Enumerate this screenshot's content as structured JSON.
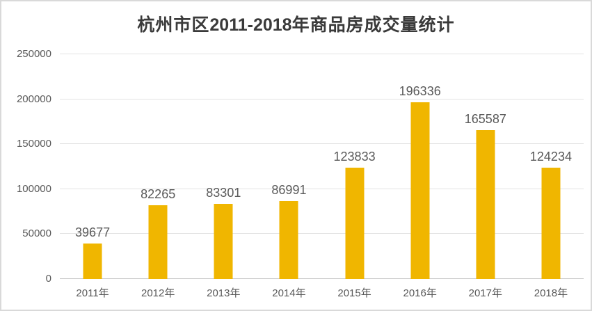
{
  "title": {
    "prefix": "杭州市区",
    "range": "2011-2018",
    "suffix": "年商品房成交量统计",
    "full": "杭州市区2011-2018年商品房成交量统计"
  },
  "chart_data": {
    "type": "bar",
    "title": "杭州市区2011-2018年商品房成交量统计",
    "categories": [
      "2011年",
      "2012年",
      "2013年",
      "2014年",
      "2015年",
      "2016年",
      "2017年",
      "2018年"
    ],
    "values": [
      39677,
      82265,
      83301,
      86991,
      123833,
      196336,
      165587,
      124234
    ],
    "data_labels": [
      "39677",
      "82265",
      "83301",
      "86991",
      "123833",
      "196336",
      "165587",
      "124234"
    ],
    "xlabel": "",
    "ylabel": "",
    "ylim": [
      0,
      250000
    ],
    "yticks": [
      0,
      50000,
      100000,
      150000,
      200000,
      250000
    ],
    "grid": true,
    "legend": false
  },
  "colors": {
    "bar": "#F0B600",
    "axis_text": "#595959",
    "data_label_text": "#595959",
    "gridline": "#E2E2E2",
    "axis_line": "#C8C8C8",
    "title_text": "#3A3A3A",
    "frame_border": "#D9D9D9",
    "background": "#FFFFFF"
  }
}
